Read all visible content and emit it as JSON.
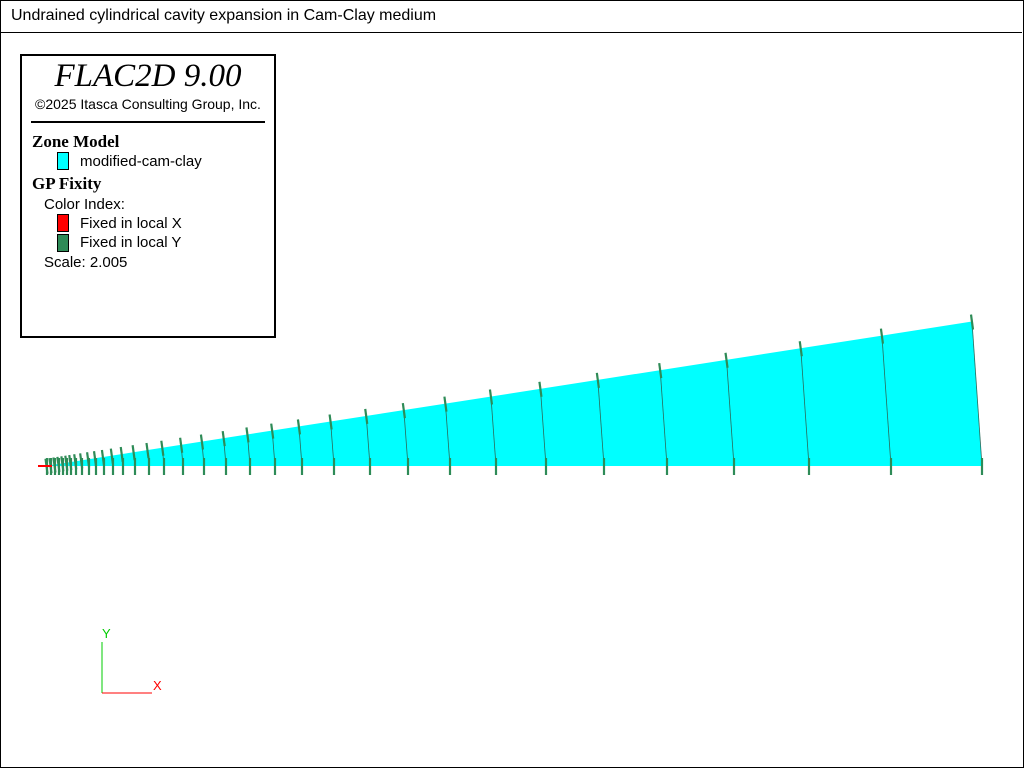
{
  "window": {
    "title": "Undrained cylindrical cavity expansion in Cam-Clay medium"
  },
  "legend": {
    "app_title": "FLAC2D 9.00",
    "copyright": "©2025 Itasca Consulting Group, Inc.",
    "zone_model_heading": "Zone Model",
    "zone_model_item": "modified-cam-clay",
    "gp_fixity_heading": "GP Fixity",
    "color_index_label": "Color Index:",
    "fixity_items": [
      "Fixed in local X",
      "Fixed in local Y"
    ],
    "scale_label": "Scale: 2.005"
  },
  "colors": {
    "zone": "#00ffff",
    "fixed_x": "#ff0000",
    "fixed_y": "#2e8b57",
    "axis_y": "#00cc00",
    "axis_x": "#ff0000"
  },
  "axes": {
    "x_label": "X",
    "y_label": "Y"
  },
  "icons": {
    "zone_swatch": "cyan-swatch-icon",
    "fixed_x_swatch": "red-swatch-icon",
    "fixed_y_swatch": "green-swatch-icon"
  }
}
